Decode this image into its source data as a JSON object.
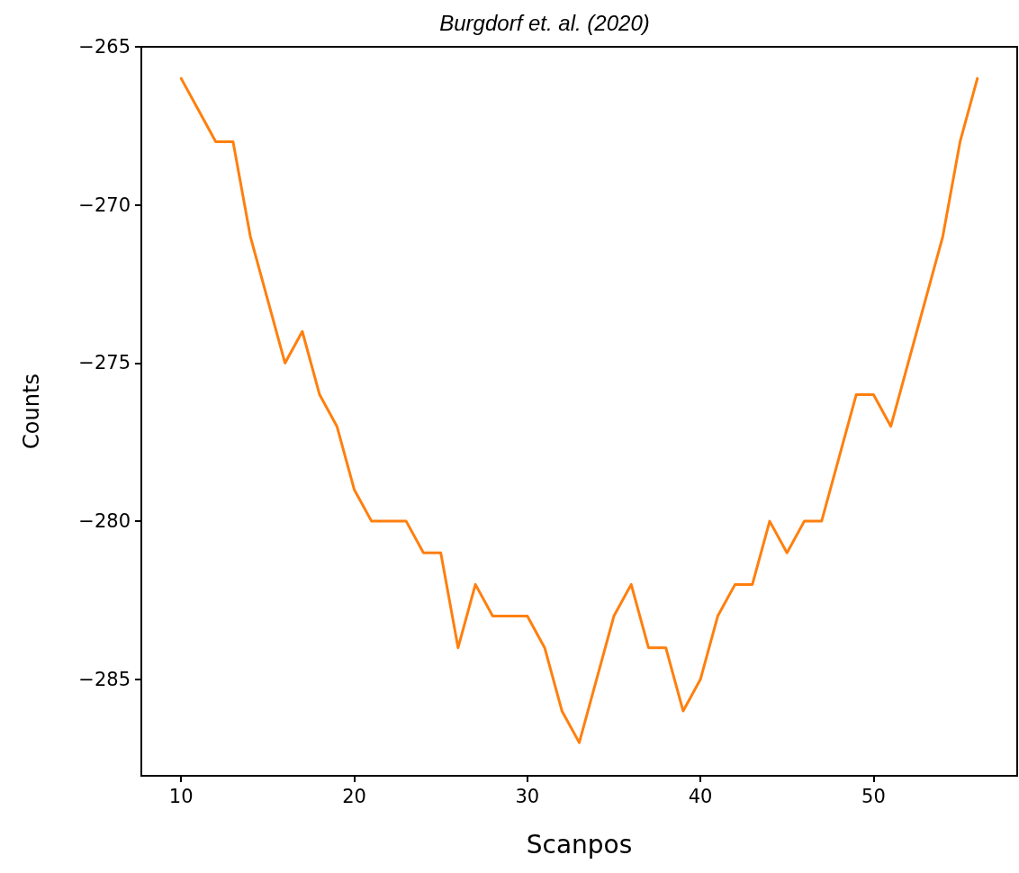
{
  "chart_data": {
    "type": "line",
    "title": "Burgdorf et. al. (2020)",
    "xlabel": "Scanpos",
    "ylabel": "Counts",
    "x": [
      10,
      11,
      12,
      13,
      14,
      15,
      16,
      17,
      18,
      19,
      20,
      21,
      22,
      23,
      24,
      25,
      26,
      27,
      28,
      29,
      30,
      31,
      32,
      33,
      34,
      35,
      36,
      37,
      38,
      39,
      40,
      41,
      42,
      43,
      44,
      45,
      46,
      47,
      48,
      49,
      50,
      51,
      52,
      53,
      54,
      55,
      56
    ],
    "series": [
      {
        "color": "#ff7f0e",
        "values": [
          -266,
          -267,
          -268,
          -268,
          -271,
          -273,
          -275,
          -274,
          -276,
          -277,
          -279,
          -280,
          -280,
          -280,
          -281,
          -281,
          -284,
          -282,
          -283,
          -283,
          -283,
          -284,
          -286,
          -287,
          -285,
          -283,
          -282,
          -284,
          -284,
          -286,
          -285,
          -283,
          -282,
          -282,
          -280,
          -281,
          -280,
          -280,
          -278,
          -276,
          -276,
          -277,
          -275,
          -273,
          -271,
          -268,
          -266
        ]
      }
    ],
    "xlim": [
      7.7,
      58.3
    ],
    "xticks": [
      10,
      20,
      30,
      40,
      50
    ],
    "ylim": [
      -288.05,
      -265
    ],
    "yticks": [
      {
        "value": -265,
        "label": "−265"
      },
      {
        "value": -270,
        "label": "−270"
      },
      {
        "value": -275,
        "label": "−275"
      },
      {
        "value": -280,
        "label": "−280"
      },
      {
        "value": -285,
        "label": "−285"
      }
    ],
    "grid": false,
    "marker": "none",
    "line_style": "solid"
  }
}
